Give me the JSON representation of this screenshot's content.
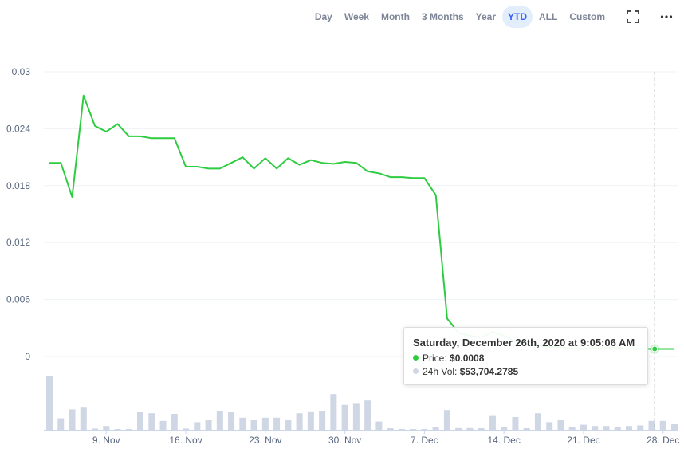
{
  "toolbar": {
    "ranges": [
      {
        "label": "Day",
        "active": false
      },
      {
        "label": "Week",
        "active": false
      },
      {
        "label": "Month",
        "active": false
      },
      {
        "label": "3 Months",
        "active": false
      },
      {
        "label": "Year",
        "active": false
      },
      {
        "label": "YTD",
        "active": true
      },
      {
        "label": "ALL",
        "active": false
      },
      {
        "label": "Custom",
        "active": false
      }
    ],
    "icons": [
      "fullscreen-icon",
      "more-options-icon"
    ]
  },
  "colors": {
    "price_line": "#16c784",
    "price_line_drawn": "#2ecc40",
    "volume_bar": "#cfd6e4",
    "grid": "#eff2f5",
    "axis_text": "#58667e",
    "active_range_bg": "#e3eefc",
    "active_range_text": "#3861fb"
  },
  "tooltip": {
    "title": "Saturday, December 26th, 2020 at 9:05:06 AM",
    "price_label": "Price:",
    "price_value": "$0.0008",
    "volume_label": "24h Vol:",
    "volume_value": "$53,704.2785"
  },
  "chart_data": {
    "type": "line",
    "y_axis": {
      "ticks": [
        "0.03",
        "0.024",
        "0.018",
        "0.012",
        "0.006",
        "0"
      ],
      "ylim": [
        0,
        0.03
      ]
    },
    "x_axis": {
      "tick_labels": [
        "9. Nov",
        "16. Nov",
        "23. Nov",
        "30. Nov",
        "7. Dec",
        "14. Dec",
        "21. Dec",
        "28. Dec"
      ],
      "tick_dates": [
        "2020-11-09",
        "2020-11-16",
        "2020-11-23",
        "2020-11-30",
        "2020-12-07",
        "2020-12-14",
        "2020-12-21",
        "2020-12-28"
      ]
    },
    "grid": true,
    "series": [
      {
        "kind": "price",
        "x": [
          "2020-11-04",
          "2020-11-05",
          "2020-11-06",
          "2020-11-07",
          "2020-11-08",
          "2020-11-09",
          "2020-11-10",
          "2020-11-11",
          "2020-11-12",
          "2020-11-13",
          "2020-11-14",
          "2020-11-15",
          "2020-11-16",
          "2020-11-17",
          "2020-11-18",
          "2020-11-19",
          "2020-11-20",
          "2020-11-21",
          "2020-11-22",
          "2020-11-23",
          "2020-11-24",
          "2020-11-25",
          "2020-11-26",
          "2020-11-27",
          "2020-11-28",
          "2020-11-29",
          "2020-11-30",
          "2020-12-01",
          "2020-12-02",
          "2020-12-03",
          "2020-12-04",
          "2020-12-05",
          "2020-12-06",
          "2020-12-07",
          "2020-12-08",
          "2020-12-09",
          "2020-12-10",
          "2020-12-11",
          "2020-12-12",
          "2020-12-13",
          "2020-12-14",
          "2020-12-15",
          "2020-12-16",
          "2020-12-17",
          "2020-12-18",
          "2020-12-19",
          "2020-12-20",
          "2020-12-21",
          "2020-12-22",
          "2020-12-23",
          "2020-12-24",
          "2020-12-25",
          "2020-12-26",
          "2020-12-27",
          "2020-12-28",
          "2020-12-29"
        ],
        "y": [
          0.0204,
          0.0204,
          0.0168,
          0.0275,
          0.0243,
          0.0237,
          0.0245,
          0.0232,
          0.0232,
          0.023,
          0.023,
          0.023,
          0.02,
          0.02,
          0.0198,
          0.0198,
          0.0204,
          0.021,
          0.0198,
          0.0209,
          0.0198,
          0.0209,
          0.0202,
          0.0207,
          0.0204,
          0.0203,
          0.0205,
          0.0204,
          0.0195,
          0.0193,
          0.0189,
          0.0189,
          0.0188,
          0.0188,
          0.017,
          0.004,
          0.0025,
          0.0022,
          0.002,
          0.0026,
          0.0022,
          0.0016,
          0.0012,
          0.0012,
          0.001,
          0.001,
          0.0008,
          0.0008,
          0.0009,
          0.0009,
          0.0009,
          0.0008,
          0.0008,
          0.0008,
          0.0008,
          0.0008
        ]
      },
      {
        "kind": "volume_24h",
        "relative_values": [
          0.85,
          0.18,
          0.32,
          0.36,
          0.02,
          0.06,
          0.0,
          0.0,
          0.28,
          0.26,
          0.14,
          0.25,
          0.02,
          0.12,
          0.15,
          0.3,
          0.28,
          0.19,
          0.16,
          0.19,
          0.19,
          0.15,
          0.26,
          0.29,
          0.3,
          0.56,
          0.39,
          0.42,
          0.46,
          0.13,
          0.03,
          0.0,
          0.0,
          0.0,
          0.05,
          0.31,
          0.04,
          0.04,
          0.03,
          0.23,
          0.05,
          0.2,
          0.03,
          0.26,
          0.12,
          0.16,
          0.05,
          0.08,
          0.06,
          0.06,
          0.05,
          0.06,
          0.07,
          0.14,
          0.14,
          0.09
        ]
      }
    ],
    "hover": {
      "date": "2020-12-26",
      "price": 0.0008
    }
  }
}
